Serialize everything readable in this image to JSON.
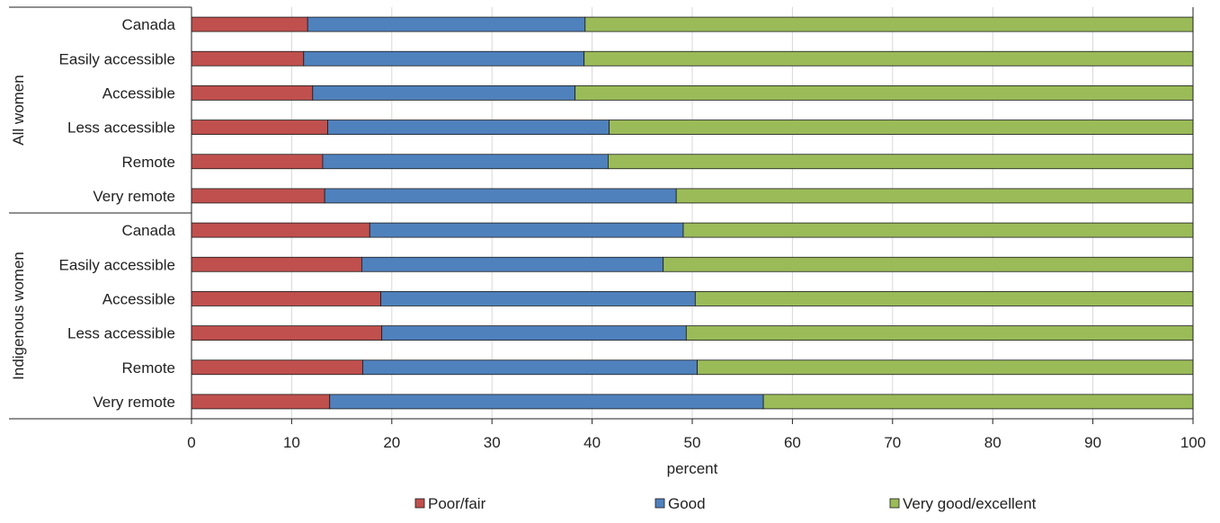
{
  "chart_data": {
    "type": "bar",
    "orientation": "horizontal",
    "stacked": true,
    "xlabel": "percent",
    "xlim": [
      0,
      100
    ],
    "xticks": [
      "0",
      "10",
      "20",
      "30",
      "40",
      "50",
      "60",
      "70",
      "80",
      "90",
      "100"
    ],
    "grid": true,
    "legend_position": "bottom",
    "groups": [
      {
        "label": "All women",
        "categories": [
          "Canada",
          "Easily accessible",
          "Accessible",
          "Less accessible",
          "Remote",
          "Very remote"
        ]
      },
      {
        "label": "Indigenous women",
        "categories": [
          "Canada",
          "Easily accessible",
          "Accessible",
          "Less accessible",
          "Remote",
          "Very remote"
        ]
      }
    ],
    "series": [
      {
        "name": "Poor/fair",
        "color": "#c0504d",
        "values": [
          11.6,
          11.2,
          12.1,
          13.6,
          13.1,
          13.3,
          17.8,
          17.0,
          18.9,
          19.0,
          17.1,
          13.8
        ]
      },
      {
        "name": "Good",
        "color": "#4f81bd",
        "values": [
          27.7,
          28.0,
          26.2,
          28.1,
          28.5,
          35.1,
          31.3,
          30.1,
          31.4,
          30.4,
          33.4,
          43.3
        ]
      },
      {
        "name": "Very good/excellent",
        "color": "#9bbb59",
        "values": [
          60.7,
          60.8,
          61.7,
          58.3,
          58.4,
          51.6,
          50.9,
          52.9,
          49.7,
          50.6,
          49.5,
          42.9
        ]
      }
    ]
  }
}
